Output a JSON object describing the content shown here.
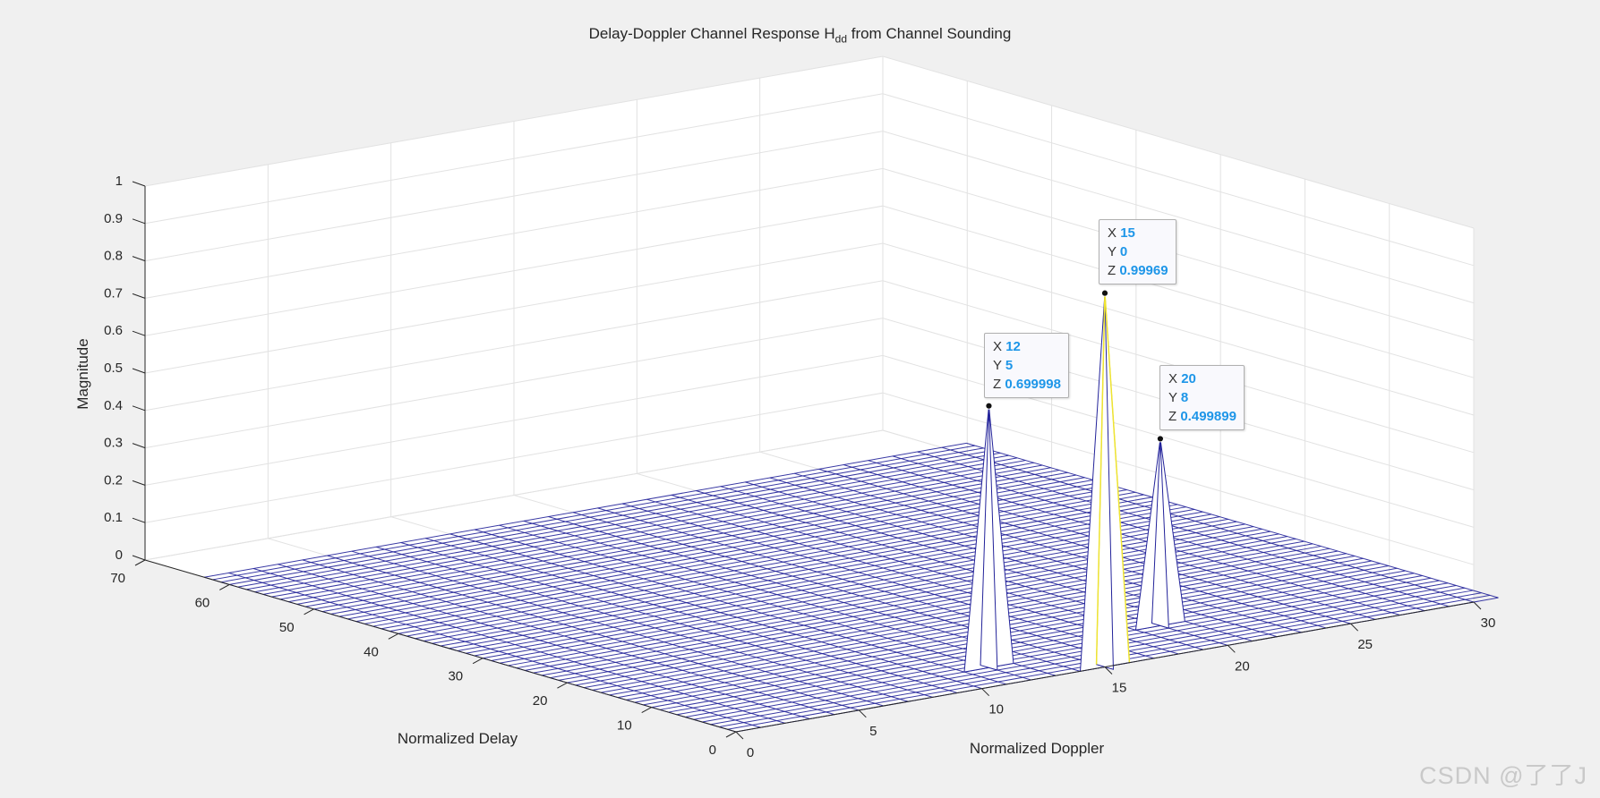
{
  "chart_data": {
    "type": "surface3d",
    "title_main": "Delay-Doppler Channel Response H",
    "title_sub": "dd",
    "title_tail": " from Channel Sounding",
    "xlabel": "Normalized Doppler",
    "ylabel": "Normalized Delay",
    "zlabel": "Magnitude",
    "xlim": [
      0,
      30
    ],
    "ylim": [
      0,
      70
    ],
    "zlim": [
      0,
      1
    ],
    "xticks": [
      0,
      5,
      10,
      15,
      20,
      25,
      30
    ],
    "yticks": [
      0,
      10,
      20,
      30,
      40,
      50,
      60,
      70
    ],
    "zticks": [
      0,
      0.1,
      0.2,
      0.3,
      0.4,
      0.5,
      0.6,
      0.7,
      0.8,
      0.9,
      1
    ],
    "grid": true,
    "mesh_x": [
      0,
      31
    ],
    "mesh_y": [
      0,
      63
    ],
    "mesh_color": "#23239a",
    "peak_highlight_color": "#f0e530",
    "peaks": [
      {
        "x": 12,
        "y": 5,
        "z": 0.699998
      },
      {
        "x": 15,
        "y": 0,
        "z": 0.99969
      },
      {
        "x": 20,
        "y": 8,
        "z": 0.499899
      }
    ]
  },
  "datatips": [
    {
      "X": "12",
      "Y": "5",
      "Z": "0.699998"
    },
    {
      "X": "15",
      "Y": "0",
      "Z": "0.99969"
    },
    {
      "X": "20",
      "Y": "8",
      "Z": "0.499899"
    }
  ],
  "tip_labels": {
    "x": "X",
    "y": "Y",
    "z": "Z"
  },
  "watermark": "CSDN @了了J"
}
